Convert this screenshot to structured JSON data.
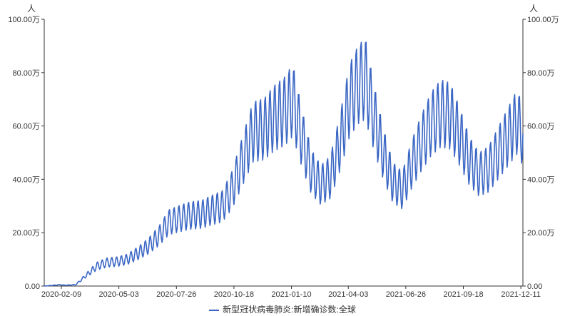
{
  "chart_data": {
    "type": "line",
    "title": "",
    "xlabel": "",
    "y_unit_left": "人",
    "y_unit_right": "人",
    "ylim": [
      0,
      1000000
    ],
    "y_ticks": [
      "0.00",
      "20.00万",
      "40.00万",
      "60.00万",
      "80.00万",
      "100.00万"
    ],
    "x_ticks": [
      "2020-02-09",
      "2020-05-03",
      "2020-07-26",
      "2020-10-18",
      "2021-01-10",
      "2021-04-03",
      "2021-06-26",
      "2021-09-18",
      "2021-12-11"
    ],
    "x_range": [
      "2020-01-15",
      "2021-12-14"
    ],
    "legend_position": "bottom-center",
    "grid": false,
    "series": [
      {
        "name": "新型冠状病毒肺炎:新增确诊数:全球",
        "color": "#3a66c4",
        "points": [
          [
            "2020-01-15",
            0
          ],
          [
            "2020-02-07",
            5000
          ],
          [
            "2020-02-14",
            3000
          ],
          [
            "2020-03-01",
            5000
          ],
          [
            "2020-03-14",
            35000
          ],
          [
            "2020-04-01",
            75000
          ],
          [
            "2020-04-15",
            88000
          ],
          [
            "2020-05-01",
            92000
          ],
          [
            "2020-05-15",
            100000
          ],
          [
            "2020-06-01",
            125000
          ],
          [
            "2020-06-15",
            150000
          ],
          [
            "2020-07-01",
            190000
          ],
          [
            "2020-07-15",
            240000
          ],
          [
            "2020-08-01",
            255000
          ],
          [
            "2020-08-15",
            265000
          ],
          [
            "2020-09-01",
            270000
          ],
          [
            "2020-09-15",
            285000
          ],
          [
            "2020-10-01",
            300000
          ],
          [
            "2020-10-15",
            360000
          ],
          [
            "2020-11-01",
            480000
          ],
          [
            "2020-11-15",
            580000
          ],
          [
            "2020-12-01",
            590000
          ],
          [
            "2020-12-15",
            630000
          ],
          [
            "2021-01-01",
            660000
          ],
          [
            "2021-01-12",
            700000
          ],
          [
            "2021-01-25",
            560000
          ],
          [
            "2021-02-08",
            430000
          ],
          [
            "2021-02-22",
            380000
          ],
          [
            "2021-03-08",
            410000
          ],
          [
            "2021-03-22",
            540000
          ],
          [
            "2021-04-05",
            700000
          ],
          [
            "2021-04-18",
            760000
          ],
          [
            "2021-04-28",
            780000
          ],
          [
            "2021-05-10",
            640000
          ],
          [
            "2021-05-24",
            500000
          ],
          [
            "2021-06-07",
            390000
          ],
          [
            "2021-06-21",
            360000
          ],
          [
            "2021-07-05",
            460000
          ],
          [
            "2021-07-19",
            540000
          ],
          [
            "2021-08-02",
            610000
          ],
          [
            "2021-08-16",
            650000
          ],
          [
            "2021-08-30",
            640000
          ],
          [
            "2021-09-13",
            560000
          ],
          [
            "2021-09-27",
            470000
          ],
          [
            "2021-10-11",
            420000
          ],
          [
            "2021-10-25",
            440000
          ],
          [
            "2021-11-08",
            500000
          ],
          [
            "2021-11-22",
            560000
          ],
          [
            "2021-12-06",
            620000
          ],
          [
            "2021-12-14",
            560000
          ]
        ]
      }
    ]
  }
}
